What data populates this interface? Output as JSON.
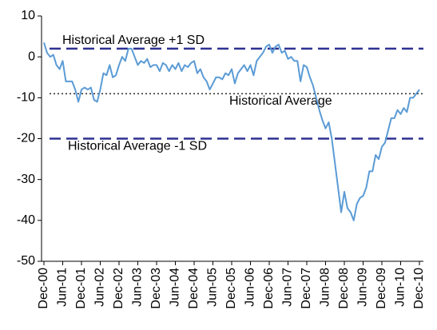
{
  "chart_data": {
    "type": "line",
    "categories": [
      "Dec-00",
      null,
      null,
      null,
      null,
      null,
      "Jun-01",
      null,
      null,
      null,
      null,
      null,
      "Dec-01",
      null,
      null,
      null,
      null,
      null,
      "Jun-02",
      null,
      null,
      null,
      null,
      null,
      "Dec-02",
      null,
      null,
      null,
      null,
      null,
      "Jun-03",
      null,
      null,
      null,
      null,
      null,
      "Dec-03",
      null,
      null,
      null,
      null,
      null,
      "Jun-04",
      null,
      null,
      null,
      null,
      null,
      "Dec-04",
      null,
      null,
      null,
      null,
      null,
      "Jun-05",
      null,
      null,
      null,
      null,
      null,
      "Dec-05",
      null,
      null,
      null,
      null,
      null,
      "Jun-06",
      null,
      null,
      null,
      null,
      null,
      "Dec-06",
      null,
      null,
      null,
      null,
      null,
      "Jun-07",
      null,
      null,
      null,
      null,
      null,
      "Dec-07",
      null,
      null,
      null,
      null,
      null,
      "Jun-08",
      null,
      null,
      null,
      null,
      null,
      "Dec-08",
      null,
      null,
      null,
      null,
      null,
      "Jun-09",
      null,
      null,
      null,
      null,
      null,
      "Dec-09",
      null,
      null,
      null,
      null,
      null,
      "Jun-10",
      null,
      null,
      null,
      null,
      null,
      "Dec-10"
    ],
    "series": [
      {
        "color": "#5b9bd5",
        "values": [
          3.5,
          1,
          0,
          0.5,
          -2,
          -3,
          -1,
          -6,
          -6,
          -6,
          -8,
          -11,
          -8,
          -7.5,
          -8,
          -7.5,
          -10.5,
          -11,
          -8,
          -4,
          -4.5,
          -2,
          -5,
          -4.5,
          -2,
          0,
          -1,
          2,
          2,
          0,
          -2,
          -1,
          -1.5,
          -0.5,
          -2.5,
          -2,
          -2,
          -3.5,
          -1.5,
          -2,
          -3.5,
          -2,
          -3,
          -1.5,
          -3.5,
          -2,
          -2.5,
          -1.5,
          -1,
          -4,
          -3,
          -5,
          -6,
          -8,
          -6.5,
          -5,
          -5,
          -5.5,
          -4,
          -4.5,
          -3,
          -6.5,
          -4,
          -3,
          -2,
          -3.5,
          -2,
          -4.5,
          -1,
          0,
          1,
          2.5,
          3,
          1,
          2.5,
          3,
          1,
          1.5,
          -0.5,
          0,
          -1,
          -1,
          -6,
          -2,
          -2.5,
          -5,
          -7,
          -10,
          -13,
          -15.5,
          -17.5,
          -16,
          -20,
          -26,
          -32,
          -38,
          -33,
          -37,
          -38,
          -40,
          -36,
          -34.5,
          -34,
          -32,
          -28,
          -28,
          -24,
          -25,
          -22,
          -21,
          -18,
          -15,
          -15,
          -13,
          -14,
          -12.5,
          -13.5,
          -10,
          -10,
          -9,
          -8
        ]
      }
    ],
    "reference_lines": [
      {
        "label": "Historical Average +1 SD",
        "value": 2,
        "style": "dashed",
        "color": "#2e3192"
      },
      {
        "label": "Historical Average",
        "value": -9,
        "style": "dotted",
        "color": "#000000"
      },
      {
        "label": "Historical Average -1 SD",
        "value": -20,
        "style": "dashed",
        "color": "#2e3192"
      }
    ],
    "ylim": [
      -50,
      10
    ],
    "yticks": [
      10,
      0,
      -10,
      -20,
      -30,
      -40,
      -50
    ],
    "grid": false
  }
}
